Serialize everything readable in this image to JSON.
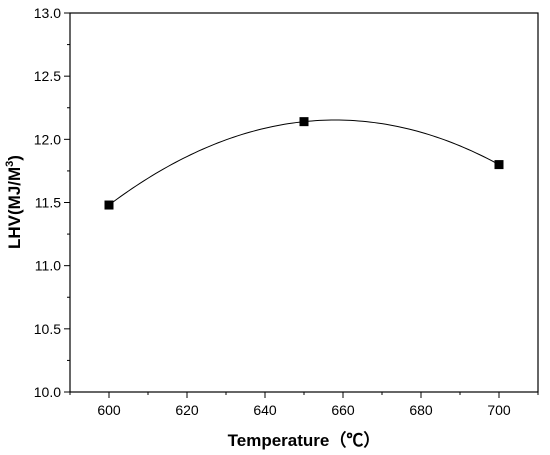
{
  "chart_data": {
    "type": "scatter",
    "title": "",
    "xlabel": "Temperature（℃）",
    "ylabel": {
      "main": "LHV(MJ/M",
      "sup": "3",
      "end": ")"
    },
    "xlim": [
      590,
      710
    ],
    "ylim": [
      10.0,
      13.0
    ],
    "x_ticks": [
      600,
      620,
      640,
      660,
      680,
      700
    ],
    "y_ticks": [
      "10.0",
      "10.5",
      "11.0",
      "11.5",
      "12.0",
      "12.5",
      "13.0"
    ],
    "series": [
      {
        "marker": "square",
        "color": "#000000",
        "smooth_fit_line": true,
        "x": [
          600,
          650,
          700
        ],
        "y": [
          11.48,
          12.14,
          11.8
        ]
      }
    ],
    "grid": false,
    "legend": "none"
  }
}
